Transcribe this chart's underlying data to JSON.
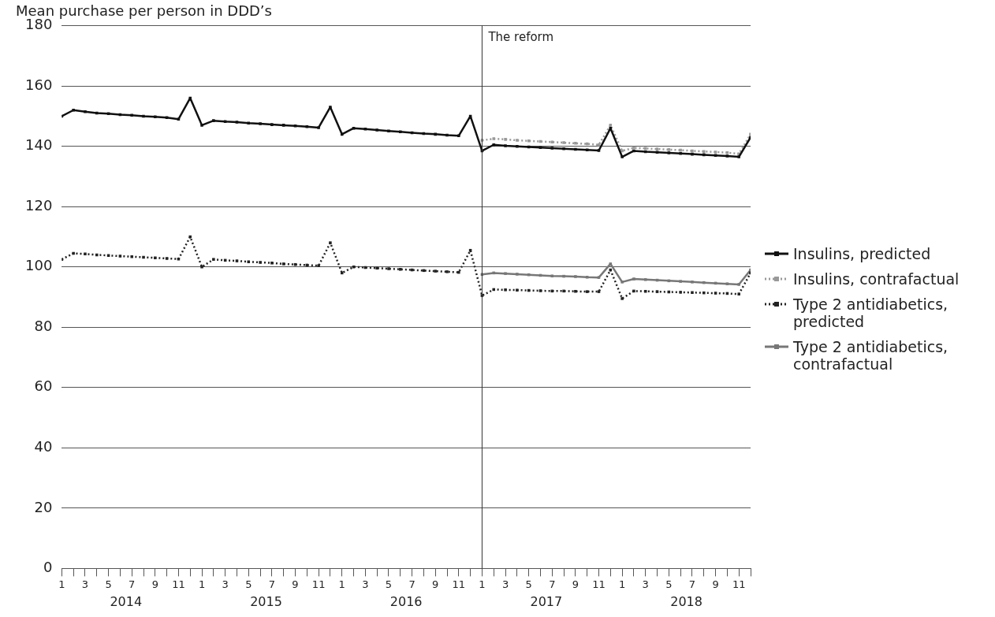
{
  "chart_data": {
    "type": "line",
    "ylabel": "Mean purchase per person in DDD’s",
    "x": [
      "2014-01",
      "2014-02",
      "2014-03",
      "2014-04",
      "2014-05",
      "2014-06",
      "2014-07",
      "2014-08",
      "2014-09",
      "2014-10",
      "2014-11",
      "2014-12",
      "2015-01",
      "2015-02",
      "2015-03",
      "2015-04",
      "2015-05",
      "2015-06",
      "2015-07",
      "2015-08",
      "2015-09",
      "2015-10",
      "2015-11",
      "2015-12",
      "2016-01",
      "2016-02",
      "2016-03",
      "2016-04",
      "2016-05",
      "2016-06",
      "2016-07",
      "2016-08",
      "2016-09",
      "2016-10",
      "2016-11",
      "2016-12",
      "2017-01",
      "2017-02",
      "2017-03",
      "2017-04",
      "2017-05",
      "2017-06",
      "2017-07",
      "2017-08",
      "2017-09",
      "2017-10",
      "2017-11",
      "2017-12",
      "2018-01",
      "2018-02",
      "2018-03",
      "2018-04",
      "2018-05",
      "2018-06",
      "2018-07",
      "2018-08",
      "2018-09",
      "2018-10",
      "2018-11",
      "2018-12"
    ],
    "xticks": [
      {
        "value": "2014-01",
        "label": "1"
      },
      {
        "value": "2014-02",
        "label": null
      },
      {
        "value": "2014-03",
        "label": "3"
      },
      {
        "value": "2014-04",
        "label": null
      },
      {
        "value": "2014-05",
        "label": "5"
      },
      {
        "value": "2014-06",
        "label": null
      },
      {
        "value": "2014-07",
        "label": "7"
      },
      {
        "value": "2014-08",
        "label": null
      },
      {
        "value": "2014-09",
        "label": "9"
      },
      {
        "value": "2014-10",
        "label": null
      },
      {
        "value": "2014-11",
        "label": "11"
      },
      {
        "value": "2014-12",
        "label": null
      },
      {
        "value": "2015-01",
        "label": "1"
      },
      {
        "value": "2015-02",
        "label": null
      },
      {
        "value": "2015-03",
        "label": "3"
      },
      {
        "value": "2015-04",
        "label": null
      },
      {
        "value": "2015-05",
        "label": "5"
      },
      {
        "value": "2015-06",
        "label": null
      },
      {
        "value": "2015-07",
        "label": "7"
      },
      {
        "value": "2015-08",
        "label": null
      },
      {
        "value": "2015-09",
        "label": "9"
      },
      {
        "value": "2015-10",
        "label": null
      },
      {
        "value": "2015-11",
        "label": "11"
      },
      {
        "value": "2015-12",
        "label": null
      },
      {
        "value": "2016-01",
        "label": "1"
      },
      {
        "value": "2016-02",
        "label": null
      },
      {
        "value": "2016-03",
        "label": "3"
      },
      {
        "value": "2016-04",
        "label": null
      },
      {
        "value": "2016-05",
        "label": "5"
      },
      {
        "value": "2016-06",
        "label": null
      },
      {
        "value": "2016-07",
        "label": "7"
      },
      {
        "value": "2016-08",
        "label": null
      },
      {
        "value": "2016-09",
        "label": "9"
      },
      {
        "value": "2016-10",
        "label": null
      },
      {
        "value": "2016-11",
        "label": "11"
      },
      {
        "value": "2016-12",
        "label": null
      },
      {
        "value": "2017-01",
        "label": "1"
      },
      {
        "value": "2017-02",
        "label": null
      },
      {
        "value": "2017-03",
        "label": "3"
      },
      {
        "value": "2017-04",
        "label": null
      },
      {
        "value": "2017-05",
        "label": "5"
      },
      {
        "value": "2017-06",
        "label": null
      },
      {
        "value": "2017-07",
        "label": "7"
      },
      {
        "value": "2017-08",
        "label": null
      },
      {
        "value": "2017-09",
        "label": "9"
      },
      {
        "value": "2017-10",
        "label": null
      },
      {
        "value": "2017-11",
        "label": "11"
      },
      {
        "value": "2017-12",
        "label": null
      },
      {
        "value": "2018-01",
        "label": "1"
      },
      {
        "value": "2018-02",
        "label": null
      },
      {
        "value": "2018-03",
        "label": "3"
      },
      {
        "value": "2018-04",
        "label": null
      },
      {
        "value": "2018-05",
        "label": "5"
      },
      {
        "value": "2018-06",
        "label": null
      },
      {
        "value": "2018-07",
        "label": "7"
      },
      {
        "value": "2018-08",
        "label": null
      },
      {
        "value": "2018-09",
        "label": "9"
      },
      {
        "value": "2018-10",
        "label": null
      },
      {
        "value": "2018-11",
        "label": "11"
      },
      {
        "value": "2018-12",
        "label": null
      }
    ],
    "ylim": [
      0,
      180
    ],
    "yticks": [
      0,
      20,
      40,
      60,
      80,
      100,
      120,
      140,
      160,
      180
    ],
    "grid": "y",
    "legend": "right",
    "marker": "square",
    "series": [
      {
        "name": "Insulins, predicted",
        "color": "#111111",
        "line_style": "solid",
        "values": [
          150,
          152,
          151.5,
          151,
          150.8,
          150.5,
          150.3,
          150,
          149.8,
          149.5,
          149,
          156,
          147,
          148.5,
          148.2,
          148,
          147.7,
          147.5,
          147.2,
          147,
          146.8,
          146.5,
          146.2,
          153,
          144,
          146,
          145.7,
          145.4,
          145.1,
          144.8,
          144.5,
          144.2,
          144,
          143.7,
          143.5,
          150,
          138.5,
          140.5,
          140.2,
          140,
          139.8,
          139.6,
          139.4,
          139.2,
          139,
          138.8,
          138.6,
          146,
          136.5,
          138.5,
          138.2,
          138,
          137.8,
          137.6,
          137.4,
          137.2,
          137,
          136.8,
          136.5,
          143
        ]
      },
      {
        "name": "Insulins, contrafactual",
        "color": "#999999",
        "line_style": "dotted",
        "values": [
          null,
          null,
          null,
          null,
          null,
          null,
          null,
          null,
          null,
          null,
          null,
          null,
          null,
          null,
          null,
          null,
          null,
          null,
          null,
          null,
          null,
          null,
          null,
          null,
          null,
          null,
          null,
          null,
          null,
          null,
          null,
          null,
          null,
          null,
          null,
          null,
          142,
          142.5,
          142.3,
          142,
          141.8,
          141.6,
          141.4,
          141.2,
          141,
          140.8,
          140.5,
          147,
          138.5,
          139.5,
          139.3,
          139.1,
          138.9,
          138.7,
          138.5,
          138.3,
          138.1,
          137.9,
          137.5,
          144
        ]
      },
      {
        "name": "Type 2 antidiabetics, predicted",
        "color": "#222222",
        "line_style": "dotted",
        "values": [
          102.5,
          104.5,
          104.3,
          104,
          103.8,
          103.6,
          103.4,
          103.2,
          103,
          102.8,
          102.6,
          110,
          100,
          102.5,
          102.2,
          102,
          101.7,
          101.5,
          101.3,
          101,
          100.8,
          100.6,
          100.4,
          108,
          98,
          100,
          99.8,
          99.6,
          99.4,
          99.2,
          99,
          98.8,
          98.6,
          98.4,
          98.2,
          105.5,
          90.5,
          92.5,
          92.4,
          92.3,
          92.2,
          92.1,
          92,
          92,
          91.9,
          91.8,
          91.8,
          99,
          89.5,
          92,
          91.9,
          91.8,
          91.7,
          91.6,
          91.5,
          91.4,
          91.3,
          91.2,
          91,
          98
        ]
      },
      {
        "name": "Type 2 antidiabetics, contrafactual",
        "color": "#777777",
        "line_style": "solid",
        "values": [
          null,
          null,
          null,
          null,
          null,
          null,
          null,
          null,
          null,
          null,
          null,
          null,
          null,
          null,
          null,
          null,
          null,
          null,
          null,
          null,
          null,
          null,
          null,
          null,
          null,
          null,
          null,
          null,
          null,
          null,
          null,
          null,
          null,
          null,
          null,
          null,
          97.5,
          98,
          97.8,
          97.6,
          97.4,
          97.2,
          97,
          96.9,
          96.8,
          96.6,
          96.5,
          101,
          95,
          96,
          95.8,
          95.6,
          95.4,
          95.2,
          95,
          94.8,
          94.6,
          94.4,
          94.2,
          99
        ]
      }
    ],
    "ref_lines": [
      {
        "axis": "x",
        "value": "2017-01",
        "label": "The reform",
        "color": "#333333"
      }
    ],
    "xlim": [
      "2014-01",
      "2018-12"
    ],
    "annotations": [
      "2014",
      "2015",
      "2016",
      "2017",
      "2018"
    ]
  }
}
